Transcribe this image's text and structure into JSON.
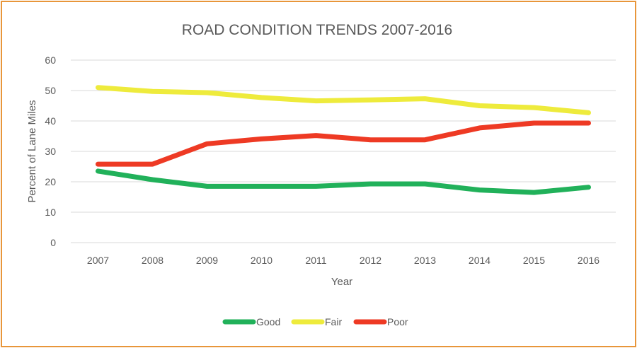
{
  "chart_data": {
    "type": "line",
    "title": "ROAD CONDITION TRENDS 2007-2016",
    "xlabel": "Year",
    "ylabel": "Percent of Lane Miles",
    "ylim": [
      0,
      60
    ],
    "yticks": [
      0,
      10,
      20,
      30,
      40,
      50,
      60
    ],
    "grid": true,
    "legend_position": "bottom",
    "categories": [
      "2007",
      "2008",
      "2009",
      "2010",
      "2011",
      "2012",
      "2013",
      "2014",
      "2015",
      "2016"
    ],
    "series": [
      {
        "name": "Good",
        "color": "#21b15a",
        "values": [
          23.5,
          20.7,
          18.5,
          18.5,
          18.5,
          19.3,
          19.3,
          17.3,
          16.5,
          18.2
        ]
      },
      {
        "name": "Fair",
        "color": "#eeeb3c",
        "values": [
          51.0,
          49.7,
          49.3,
          47.7,
          46.6,
          46.9,
          47.3,
          45.0,
          44.4,
          42.7
        ]
      },
      {
        "name": "Poor",
        "color": "#ee3a24",
        "values": [
          25.8,
          25.8,
          32.5,
          34.1,
          35.2,
          33.8,
          33.8,
          37.7,
          39.3,
          39.3
        ]
      }
    ]
  }
}
